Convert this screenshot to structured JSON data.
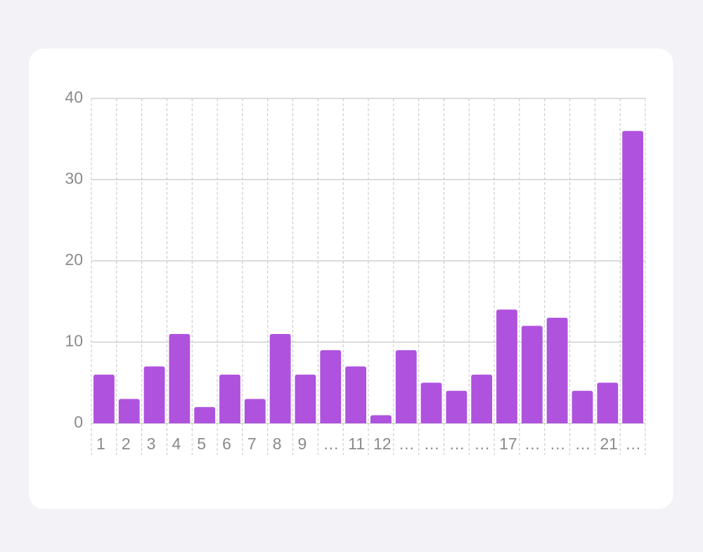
{
  "chart_data": {
    "type": "bar",
    "categories": [
      "1",
      "2",
      "3",
      "4",
      "5",
      "6",
      "7",
      "8",
      "9",
      "…",
      "11",
      "12",
      "…",
      "…",
      "…",
      "…",
      "17",
      "…",
      "…",
      "…",
      "21",
      "…"
    ],
    "values": [
      6,
      3,
      7,
      11,
      2,
      6,
      3,
      11,
      6,
      9,
      7,
      1,
      9,
      5,
      4,
      6,
      14,
      12,
      13,
      4,
      5,
      36
    ],
    "color": "#af52de",
    "ylim": [
      0,
      40
    ],
    "yticks": [
      0,
      10,
      20,
      30,
      40
    ],
    "grid": true
  }
}
